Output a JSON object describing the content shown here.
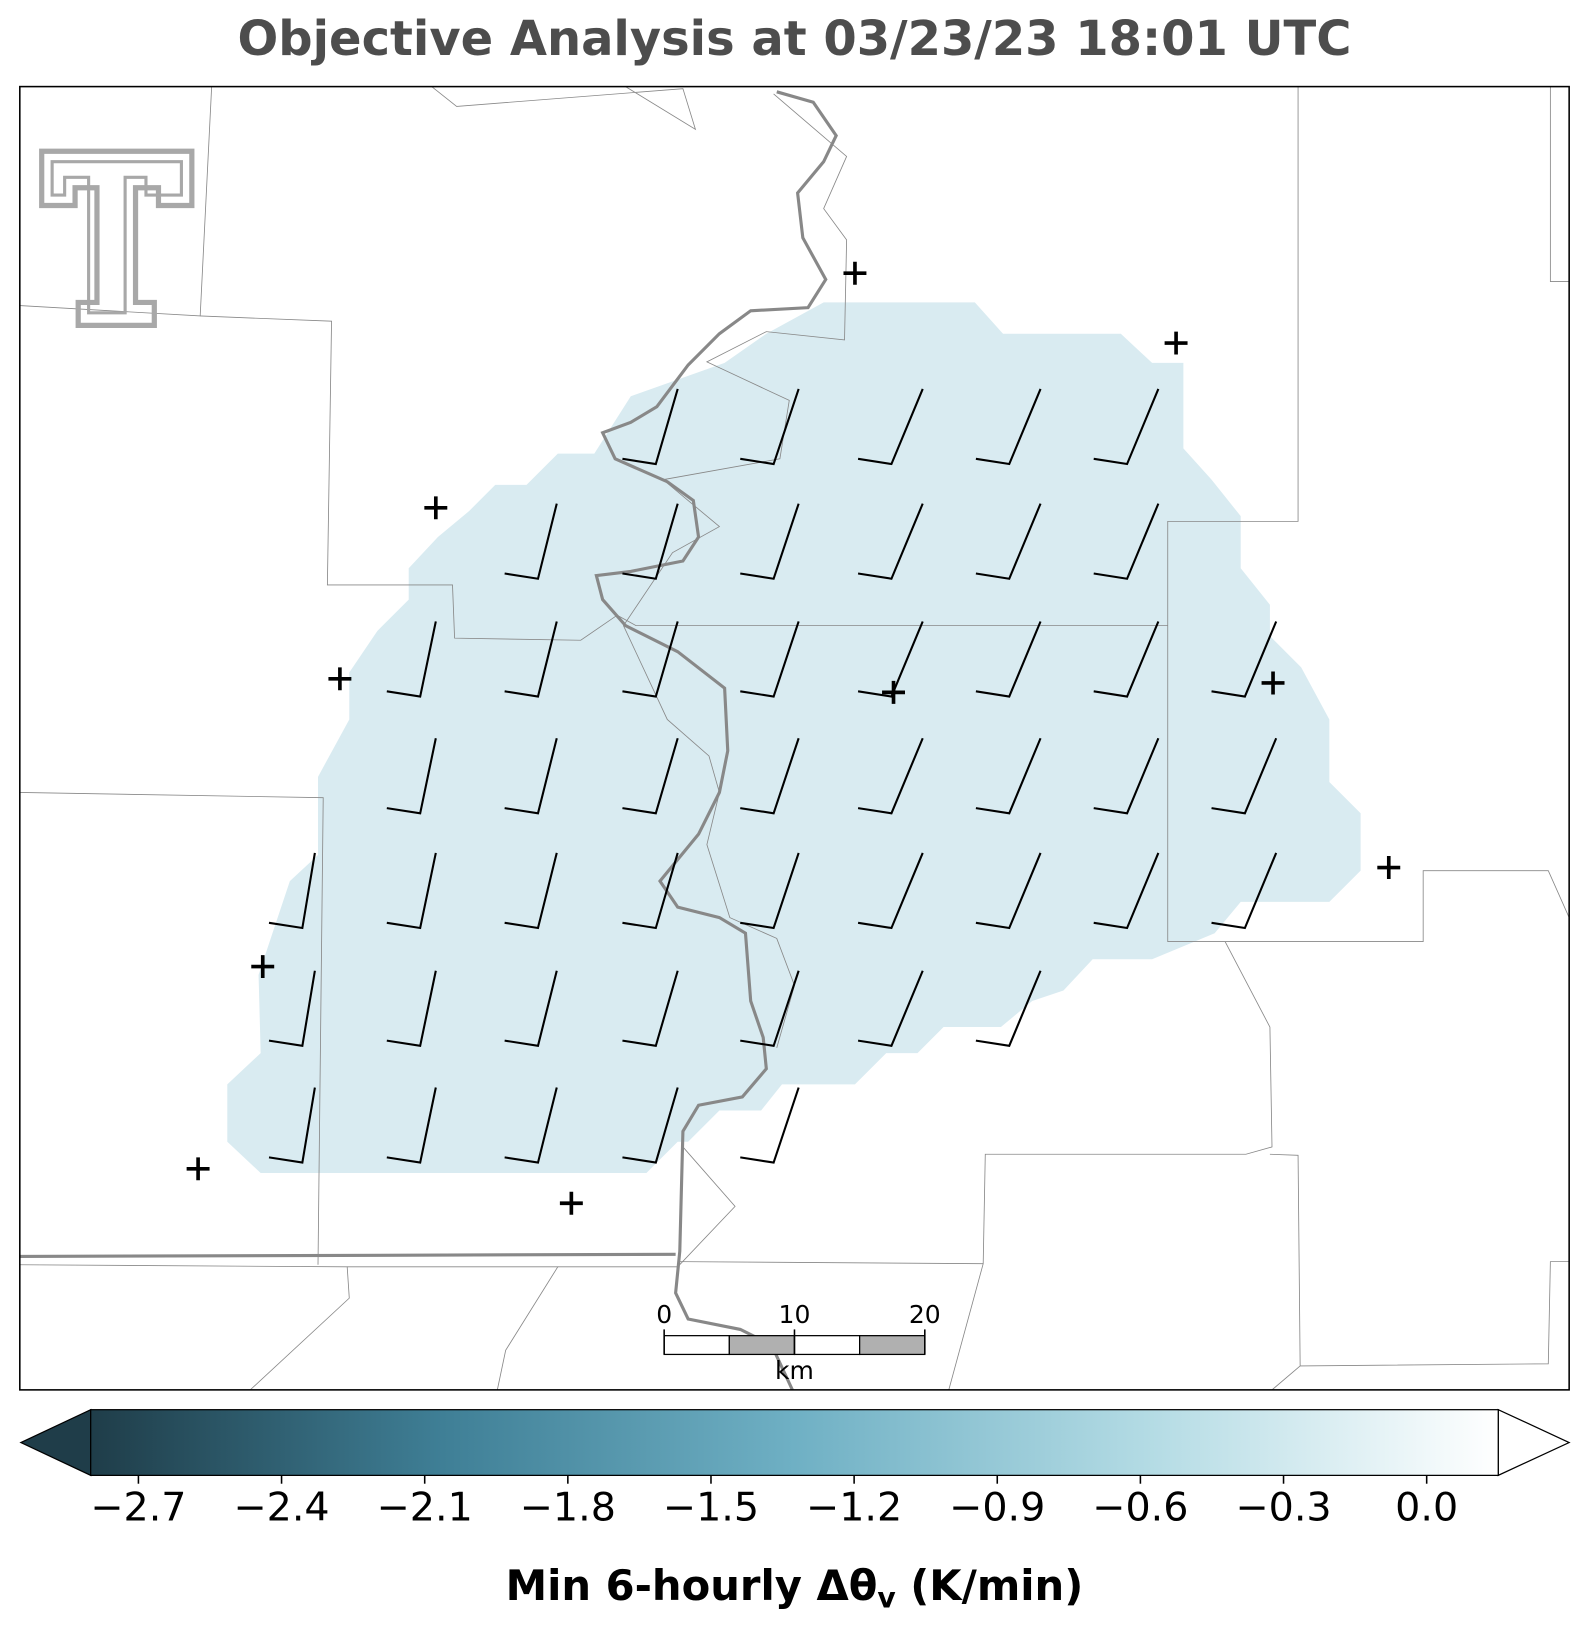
{
  "title": "Objective Analysis at 03/23/23 18:01 UTC",
  "colorbar": {
    "label_parts": [
      "Min 6-hourly Δθ",
      "v",
      " (K/min)"
    ],
    "lim": [
      -2.8,
      0.15
    ],
    "colors": [
      "#1f3d49",
      "#3f7f96",
      "#6fb0c4",
      "#b3dbe4",
      "#ffffff"
    ],
    "ticks": [
      {
        "value": -2.7,
        "label": "−2.7"
      },
      {
        "value": -2.4,
        "label": "−2.4"
      },
      {
        "value": -2.1,
        "label": "−2.1"
      },
      {
        "value": -1.8,
        "label": "−1.8"
      },
      {
        "value": -1.5,
        "label": "−1.5"
      },
      {
        "value": -1.2,
        "label": "−1.2"
      },
      {
        "value": -0.9,
        "label": "−0.9"
      },
      {
        "value": -0.6,
        "label": "−0.6"
      },
      {
        "value": -0.3,
        "label": "−0.3"
      },
      {
        "value": 0,
        "label": "0.0"
      }
    ]
  },
  "scale_bar": {
    "xlim": [
      0,
      20
    ],
    "ticks": [
      0,
      10,
      20
    ],
    "unit": "km"
  }
}
